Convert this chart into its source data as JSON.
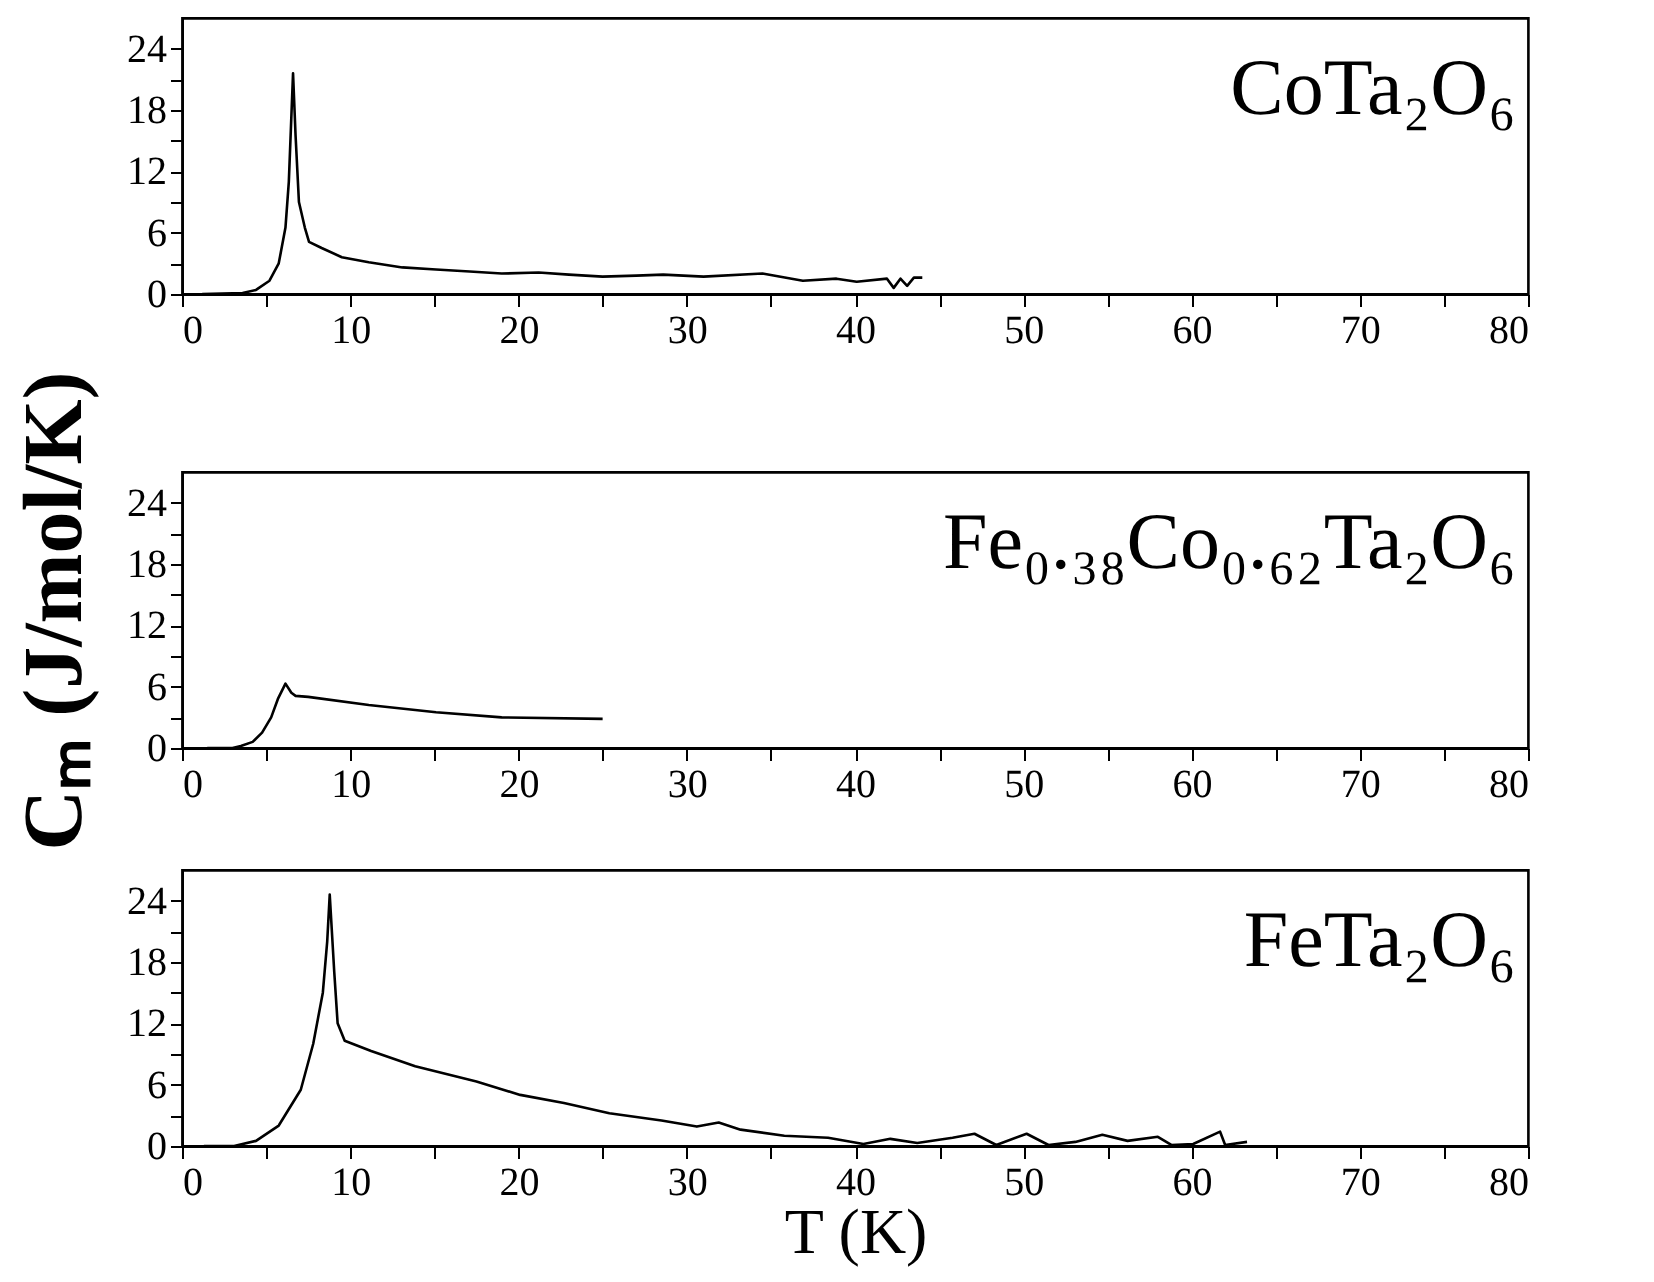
{
  "chart_data": [
    {
      "type": "line",
      "annotations": [
        "CoTa₂O₆"
      ],
      "series": [
        {
          "color": "#000000",
          "x": [
            1.2,
            3.6,
            4.4,
            5.2,
            5.75,
            6.15,
            6.35,
            6.6,
            6.75,
            6.95,
            7.3,
            7.55,
            8.3,
            9.5,
            11.1,
            13.1,
            15.1,
            17.1,
            19,
            21.2,
            23,
            25,
            27,
            28.6,
            31,
            34.5,
            36.9,
            38.9,
            40.1,
            41.9,
            42.3,
            42.7,
            43.1,
            43.5,
            44
          ],
          "values": [
            0,
            0.1,
            0.4,
            1.3,
            3,
            6.5,
            11,
            21.6,
            15.5,
            9,
            6.5,
            5.1,
            4.5,
            3.6,
            3.1,
            2.6,
            2.4,
            2.2,
            2.0,
            2.1,
            1.9,
            1.7,
            1.8,
            1.9,
            1.7,
            2.0,
            1.3,
            1.5,
            1.2,
            1.5,
            0.6,
            1.5,
            0.8,
            1.6,
            1.6
          ]
        }
      ],
      "xlim": [
        0,
        80
      ],
      "xticks": [
        0,
        {
          "value": 5,
          "label": null
        },
        10,
        {
          "value": 15,
          "label": null
        },
        20,
        {
          "value": 25,
          "label": null
        },
        30,
        {
          "value": 35,
          "label": null
        },
        40,
        {
          "value": 45,
          "label": null
        },
        50,
        {
          "value": 55,
          "label": null
        },
        60,
        {
          "value": 65,
          "label": null
        },
        70,
        {
          "value": 75,
          "label": null
        },
        80
      ],
      "ylim": [
        0,
        27
      ],
      "yticks": [
        0,
        {
          "value": 3,
          "label": null
        },
        6,
        {
          "value": 9,
          "label": null
        },
        12,
        {
          "value": 15,
          "label": null
        },
        18,
        {
          "value": 21,
          "label": null
        },
        24
      ]
    },
    {
      "type": "line",
      "annotations": [
        "Fe₀.₃₈Co₀.₆₂Ta₂O₆"
      ],
      "ylabel": "Cₘ (J/mol/K)",
      "series": [
        {
          "color": "#000000",
          "x": [
            1.5,
            3.0,
            3.5,
            4.2,
            4.76,
            5.3,
            5.7,
            6.15,
            6.5,
            6.75,
            7.5,
            11.1,
            15.1,
            19,
            25
          ],
          "values": [
            0,
            0,
            0.2,
            0.6,
            1.5,
            3,
            4.8,
            6.3,
            5.4,
            5.1,
            5.0,
            4.2,
            3.5,
            3.0,
            2.85
          ]
        }
      ],
      "xlim": [
        0,
        80
      ],
      "xticks": [
        0,
        {
          "value": 5,
          "label": null
        },
        10,
        {
          "value": 15,
          "label": null
        },
        20,
        {
          "value": 25,
          "label": null
        },
        30,
        {
          "value": 35,
          "label": null
        },
        40,
        {
          "value": 45,
          "label": null
        },
        50,
        {
          "value": 55,
          "label": null
        },
        60,
        {
          "value": 65,
          "label": null
        },
        70,
        {
          "value": 75,
          "label": null
        },
        80
      ],
      "ylim": [
        0,
        27
      ],
      "yticks": [
        0,
        {
          "value": 3,
          "label": null
        },
        6,
        {
          "value": 9,
          "label": null
        },
        12,
        {
          "value": 15,
          "label": null
        },
        18,
        {
          "value": 21,
          "label": null
        },
        24
      ]
    },
    {
      "type": "line",
      "annotations": [
        "FeTa₂O₆"
      ],
      "xlabel": "T (K)",
      "series": [
        {
          "color": "#000000",
          "x": [
            1.3,
            3.1,
            4.4,
            5.75,
            7.06,
            7.8,
            8.37,
            8.63,
            8.78,
            9.05,
            9.25,
            9.67,
            11.24,
            13.86,
            17.5,
            20.1,
            22.7,
            25.4,
            28.5,
            30.6,
            31.9,
            33.2,
            35.8,
            38.4,
            40.5,
            42.1,
            43.7,
            45.8,
            47.1,
            48.4,
            50.2,
            51.5,
            53.1,
            54.7,
            56.2,
            58.0,
            58.8,
            60.1,
            61.7,
            62,
            63.3
          ],
          "values": [
            0,
            0,
            0.5,
            2,
            5.5,
            10,
            15,
            20,
            24.6,
            17,
            12,
            10.3,
            9.3,
            7.8,
            6.3,
            5.0,
            4.2,
            3.2,
            2.5,
            1.9,
            2.3,
            1.6,
            1.0,
            0.8,
            0.2,
            0.7,
            0.3,
            0.8,
            1.2,
            0.1,
            1.2,
            0.1,
            0.4,
            1.1,
            0.5,
            0.9,
            0.1,
            0.2,
            1.4,
            0.1,
            0.4
          ]
        }
      ],
      "xlim": [
        0,
        80
      ],
      "xticks": [
        0,
        {
          "value": 5,
          "label": null
        },
        10,
        {
          "value": 15,
          "label": null
        },
        20,
        {
          "value": 25,
          "label": null
        },
        30,
        {
          "value": 35,
          "label": null
        },
        40,
        {
          "value": 45,
          "label": null
        },
        50,
        {
          "value": 55,
          "label": null
        },
        60,
        {
          "value": 65,
          "label": null
        },
        70,
        {
          "value": 75,
          "label": null
        },
        80
      ],
      "ylim": [
        0,
        27
      ],
      "yticks": [
        0,
        {
          "value": 3,
          "label": null
        },
        6,
        {
          "value": 9,
          "label": null
        },
        12,
        {
          "value": 15,
          "label": null
        },
        18,
        {
          "value": 21,
          "label": null
        },
        24
      ]
    }
  ]
}
